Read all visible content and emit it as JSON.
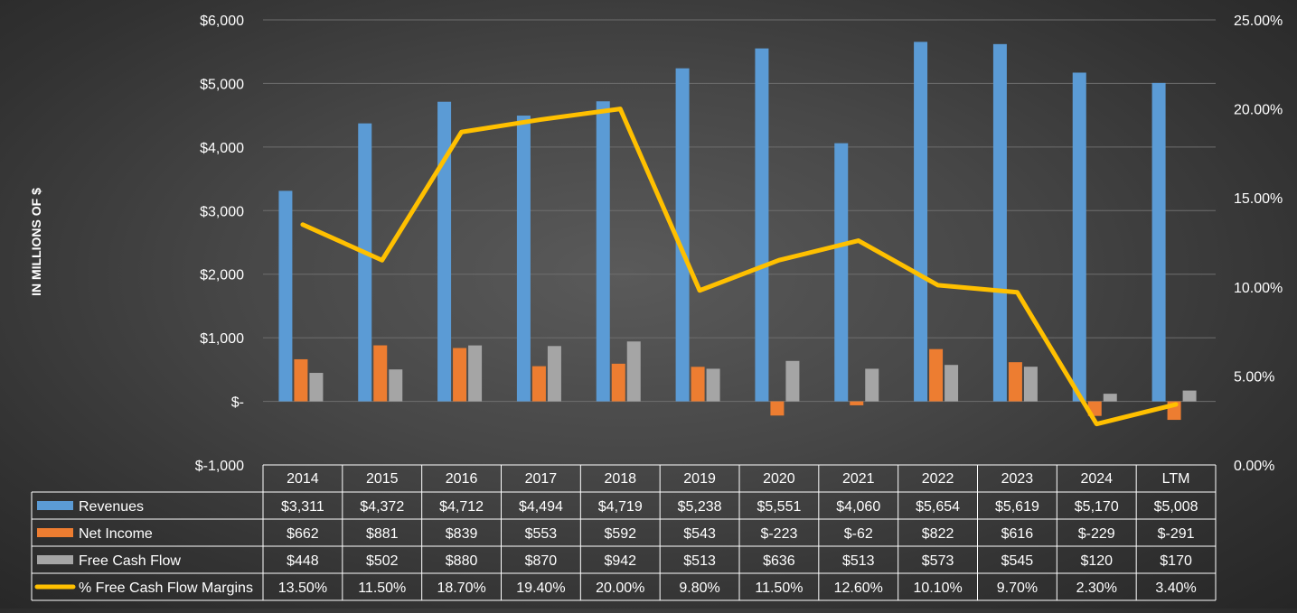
{
  "chart_data": {
    "type": "bar",
    "ylabel": "IN MILLIONS OF $",
    "categories": [
      "2014",
      "2015",
      "2016",
      "2017",
      "2018",
      "2019",
      "2020",
      "2021",
      "2022",
      "2023",
      "2024",
      "LTM"
    ],
    "y_left": {
      "ticks": [
        -1000,
        0,
        1000,
        2000,
        3000,
        4000,
        5000,
        6000
      ],
      "tick_labels": [
        "$-1,000",
        "$-",
        "$1,000",
        "$2,000",
        "$3,000",
        "$4,000",
        "$5,000",
        "$6,000"
      ],
      "ylim": [
        -1000,
        6000
      ]
    },
    "y_right": {
      "ticks": [
        0,
        5,
        10,
        15,
        20,
        25
      ],
      "tick_labels": [
        "0.00%",
        "5.00%",
        "10.00%",
        "15.00%",
        "20.00%",
        "25.00%"
      ],
      "ylim": [
        0,
        25
      ]
    },
    "series": [
      {
        "name": "Revenues",
        "type": "bar",
        "axis": "left",
        "color": "#5b9bd5",
        "values": [
          3311,
          4372,
          4712,
          4494,
          4719,
          5238,
          5551,
          4060,
          5654,
          5619,
          5170,
          5008
        ],
        "labels": [
          "$3,311",
          "$4,372",
          "$4,712",
          "$4,494",
          "$4,719",
          "$5,238",
          "$5,551",
          "$4,060",
          "$5,654",
          "$5,619",
          "$5,170",
          "$5,008"
        ]
      },
      {
        "name": "Net Income",
        "type": "bar",
        "axis": "left",
        "color": "#ed7d31",
        "values": [
          662,
          881,
          839,
          553,
          592,
          543,
          -223,
          -62,
          822,
          616,
          -229,
          -291
        ],
        "labels": [
          "$662",
          "$881",
          "$839",
          "$553",
          "$592",
          "$543",
          "$-223",
          "$-62",
          "$822",
          "$616",
          "$-229",
          "$-291"
        ]
      },
      {
        "name": "Free Cash Flow",
        "type": "bar",
        "axis": "left",
        "color": "#a5a5a5",
        "values": [
          448,
          502,
          880,
          870,
          942,
          513,
          636,
          513,
          573,
          545,
          120,
          170
        ],
        "labels": [
          "$448",
          "$502",
          "$880",
          "$870",
          "$942",
          "$513",
          "$636",
          "$513",
          "$573",
          "$545",
          "$120",
          "$170"
        ]
      },
      {
        "name": "% Free Cash Flow Margins",
        "type": "line",
        "axis": "right",
        "color": "#ffc000",
        "values": [
          13.5,
          11.5,
          18.7,
          19.4,
          20.0,
          9.8,
          11.5,
          12.6,
          10.1,
          9.7,
          2.3,
          3.4
        ],
        "labels": [
          "13.50%",
          "11.50%",
          "18.70%",
          "19.40%",
          "20.00%",
          "9.80%",
          "11.50%",
          "12.60%",
          "10.10%",
          "9.70%",
          "2.30%",
          "3.40%"
        ]
      }
    ],
    "gridlines": true,
    "legend": "data-table"
  }
}
